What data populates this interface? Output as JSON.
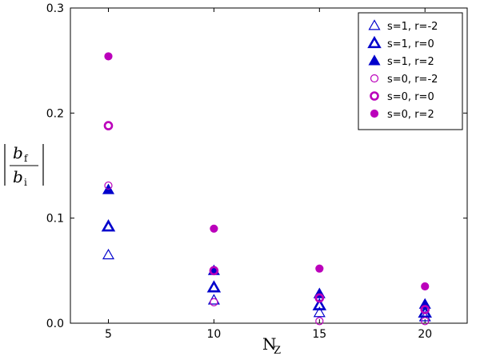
{
  "chart_data": {
    "type": "scatter",
    "x": [
      5,
      10,
      15,
      20
    ],
    "xlim": [
      3.2,
      22
    ],
    "ylim": [
      0,
      0.3
    ],
    "xticks": [
      5,
      10,
      15,
      20
    ],
    "yticks": [
      0.0,
      0.1,
      0.2,
      0.3
    ],
    "xtick_labels": [
      "5",
      "10",
      "15",
      "20"
    ],
    "ytick_labels": [
      "0.0",
      "0.1",
      "0.2",
      "0.3"
    ],
    "xlabel": {
      "main": "N",
      "sub": "Z"
    },
    "ylabel": {
      "num": "b",
      "num_sub": "f",
      "den": "b",
      "den_sub": "i"
    },
    "grid": false,
    "legend_position": "top-right",
    "series": [
      {
        "name": "s=1, r=-2",
        "marker": "triangle",
        "style": "open-thin",
        "color": "#0000cc",
        "values": [
          0.065,
          0.022,
          0.01,
          0.006
        ]
      },
      {
        "name": "s=1, r=0",
        "marker": "triangle",
        "style": "open-thick",
        "color": "#0000cc",
        "values": [
          0.092,
          0.034,
          0.017,
          0.01
        ]
      },
      {
        "name": "s=1, r=2",
        "marker": "triangle",
        "style": "filled",
        "color": "#0000cc",
        "values": [
          0.127,
          0.05,
          0.028,
          0.018
        ]
      },
      {
        "name": "s=0, r=-2",
        "marker": "circle",
        "style": "open-thin",
        "color": "#bb00bb",
        "values": [
          0.131,
          0.02,
          0.002,
          0.002
        ]
      },
      {
        "name": "s=0, r=0",
        "marker": "circle",
        "style": "open-thick",
        "color": "#bb00bb",
        "values": [
          0.188,
          0.05,
          0.024,
          0.013
        ]
      },
      {
        "name": "s=0, r=2",
        "marker": "circle",
        "style": "filled",
        "color": "#bb00bb",
        "values": [
          0.254,
          0.09,
          0.052,
          0.035
        ]
      }
    ]
  }
}
